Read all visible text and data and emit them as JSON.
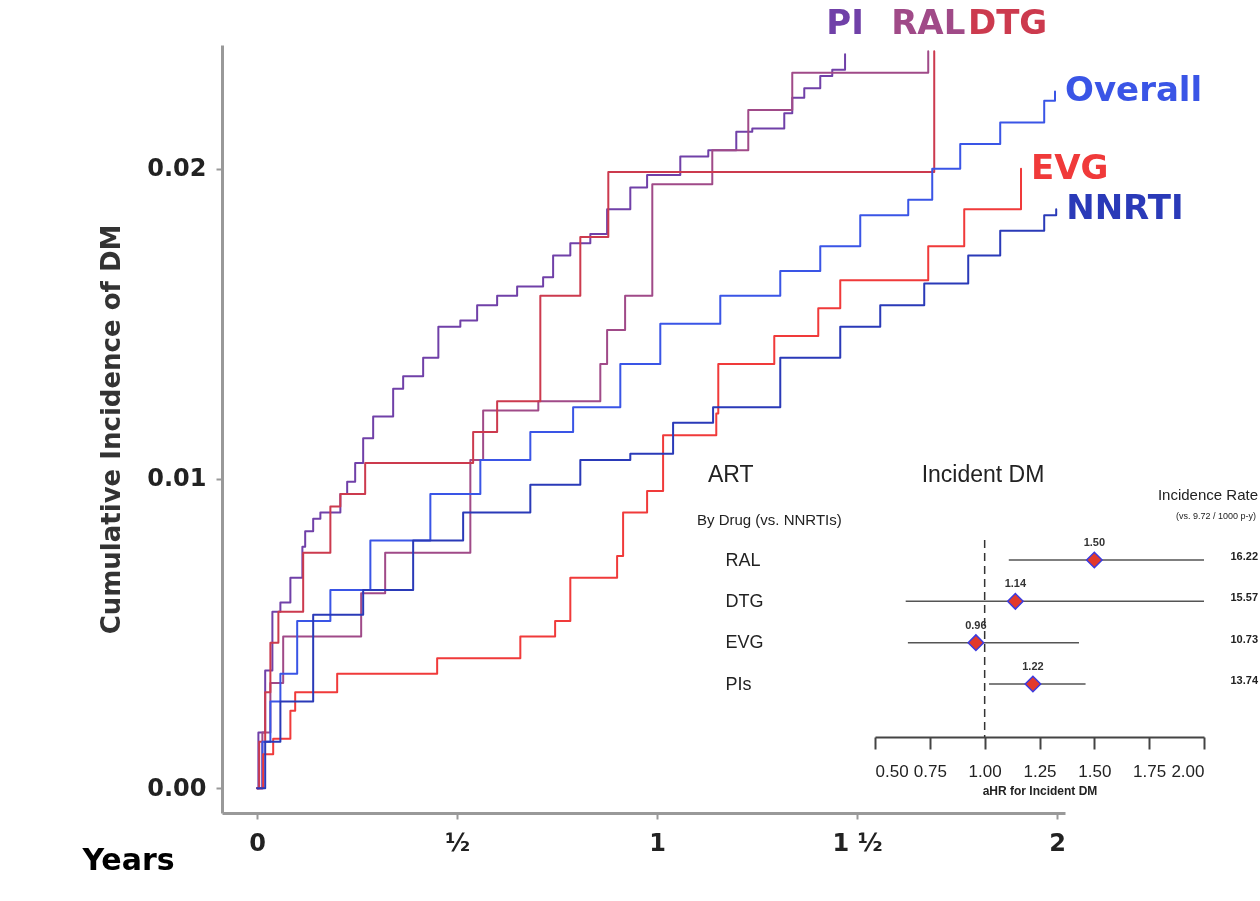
{
  "chart_data": [
    {
      "type": "step",
      "xlabel": "Years",
      "ylabel": "Cumulative Incidence of DM",
      "xlim": [
        -0.088,
        2.02
      ],
      "xticks": [
        0,
        {
          "value": 0.5,
          "label": "½"
        },
        1,
        {
          "value": 1.5,
          "label": "1 ½"
        },
        2
      ],
      "ylim": [
        -0.0008,
        0.024
      ],
      "yticks": [
        {
          "value": 0,
          "label": "0.00"
        },
        {
          "value": 0.01,
          "label": "0.01"
        },
        {
          "value": 0.02,
          "label": "0.02"
        }
      ],
      "series": [
        {
          "name": "PI",
          "color": "#7040a8",
          "x": [
            0,
            0.003,
            0.02,
            0.038,
            0.058,
            0.083,
            0.113,
            0.12,
            0.14,
            0.158,
            0.208,
            0.225,
            0.245,
            0.265,
            0.29,
            0.34,
            0.365,
            0.415,
            0.453,
            0.508,
            0.55,
            0.6,
            0.65,
            0.715,
            0.74,
            0.783,
            0.833,
            0.875,
            0.933,
            0.975,
            1.058,
            1.128,
            1.198,
            1.238,
            1.318,
            1.338,
            1.368,
            1.408,
            1.438,
            1.47
          ],
          "values": [
            0,
            0.0018,
            0.0038,
            0.0057,
            0.006,
            0.0068,
            0.0078,
            0.0083,
            0.0087,
            0.0089,
            0.0095,
            0.0099,
            0.0105,
            0.0113,
            0.012,
            0.0129,
            0.0133,
            0.0139,
            0.0149,
            0.0151,
            0.0156,
            0.0159,
            0.0162,
            0.0165,
            0.0172,
            0.0176,
            0.0179,
            0.0187,
            0.0194,
            0.0198,
            0.0204,
            0.0206,
            0.0212,
            0.0213,
            0.0218,
            0.0223,
            0.0226,
            0.023,
            0.0232,
            0.0237
          ]
        },
        {
          "name": "RAL",
          "color": "#a04a88",
          "x": [
            0,
            0.013,
            0.033,
            0.065,
            0.26,
            0.32,
            0.533,
            0.565,
            0.703,
            0.858,
            0.875,
            0.92,
            0.988,
            1.138,
            1.228,
            1.338,
            1.678
          ],
          "values": [
            0,
            0.0018,
            0.0034,
            0.0049,
            0.0063,
            0.0076,
            0.0106,
            0.0122,
            0.0125,
            0.0137,
            0.0148,
            0.0159,
            0.0195,
            0.0206,
            0.0219,
            0.0231,
            0.0238
          ]
        },
        {
          "name": "DTG",
          "color": "#cc3a4e",
          "x": [
            0,
            0.005,
            0.02,
            0.033,
            0.053,
            0.115,
            0.183,
            0.208,
            0.27,
            0.54,
            0.6,
            0.708,
            0.808,
            0.878,
            1.693
          ],
          "values": [
            0,
            0.0015,
            0.0031,
            0.0047,
            0.0057,
            0.0076,
            0.0091,
            0.0095,
            0.0105,
            0.0115,
            0.0125,
            0.0159,
            0.0178,
            0.0199,
            0.0238
          ]
        },
        {
          "name": "Overall",
          "color": "#3a55e6",
          "x": [
            0,
            0.013,
            0.033,
            0.058,
            0.1,
            0.183,
            0.283,
            0.433,
            0.558,
            0.683,
            0.79,
            0.908,
            1.008,
            1.158,
            1.308,
            1.408,
            1.508,
            1.628,
            1.688,
            1.758,
            1.858,
            1.968,
            1.995
          ],
          "values": [
            0,
            0.0015,
            0.0028,
            0.0037,
            0.0054,
            0.0064,
            0.008,
            0.0095,
            0.0106,
            0.0115,
            0.0123,
            0.0137,
            0.015,
            0.0159,
            0.0167,
            0.0175,
            0.0185,
            0.019,
            0.02,
            0.0208,
            0.0215,
            0.0222,
            0.0225
          ]
        },
        {
          "name": "EVG",
          "color": "#f03a3a",
          "x": [
            0,
            0.015,
            0.04,
            0.083,
            0.095,
            0.2,
            0.45,
            0.658,
            0.745,
            0.783,
            0.9,
            0.915,
            0.975,
            1.015,
            1.148,
            1.153,
            1.293,
            1.403,
            1.458,
            1.678,
            1.768,
            1.91
          ],
          "values": [
            0,
            0.0011,
            0.0016,
            0.0025,
            0.0031,
            0.0037,
            0.0042,
            0.0049,
            0.0054,
            0.0068,
            0.0075,
            0.0089,
            0.0096,
            0.0114,
            0.0121,
            0.0137,
            0.0146,
            0.0155,
            0.0164,
            0.0175,
            0.0187,
            0.02
          ]
        },
        {
          "name": "NNRTI",
          "color": "#2a3ab8",
          "x": [
            0,
            0.02,
            0.058,
            0.14,
            0.265,
            0.39,
            0.515,
            0.683,
            0.808,
            0.933,
            1.04,
            1.14,
            1.308,
            1.458,
            1.558,
            1.668,
            1.778,
            1.858,
            1.968,
            1.998
          ],
          "values": [
            0,
            0.0015,
            0.0028,
            0.0056,
            0.0064,
            0.008,
            0.0089,
            0.0098,
            0.0106,
            0.0108,
            0.0118,
            0.0123,
            0.0139,
            0.0149,
            0.0156,
            0.0163,
            0.0172,
            0.018,
            0.0185,
            0.0187
          ]
        }
      ]
    },
    {
      "type": "scatter",
      "orientation": "horizontal",
      "title": "Incident DM",
      "ylabel": "ART",
      "xlabel": "aHR for Incident DM",
      "marker": "diamond",
      "color": "#e2392c",
      "categories": [
        "RAL",
        "DTG",
        "EVG",
        "PIs"
      ],
      "values": [
        1.5,
        1.14,
        0.96,
        1.22
      ],
      "value_labels": [
        "1.50",
        "1.14",
        "0.96",
        "1.22"
      ],
      "errors": [
        [
          1.11,
          2.0
        ],
        [
          0.64,
          2.0
        ],
        [
          0.65,
          1.43
        ],
        [
          1.02,
          1.46
        ]
      ],
      "xlim": [
        0.5,
        2.0
      ],
      "xticks": [
        {
          "value": 0.5,
          "label": "0.50"
        },
        {
          "value": 0.75,
          "label": "0.75"
        },
        {
          "value": 1,
          "label": "1.00"
        },
        {
          "value": 1.25,
          "label": "1.25"
        },
        {
          "value": 1.5,
          "label": "1.50"
        },
        {
          "value": 1.75,
          "label": "1.75"
        },
        {
          "value": 2,
          "label": "2.00"
        }
      ],
      "ref_lines": [
        {
          "axis": "x",
          "value": 1,
          "line_style": "dashed",
          "color": "#333333"
        }
      ],
      "annotations": [
        "By Drug  (vs. NNRTIs)",
        "Incidence Rate",
        "(vs. 9.72 / 1000 p-y)",
        "16.22",
        "15.57",
        "10.73",
        "13.74"
      ]
    }
  ]
}
